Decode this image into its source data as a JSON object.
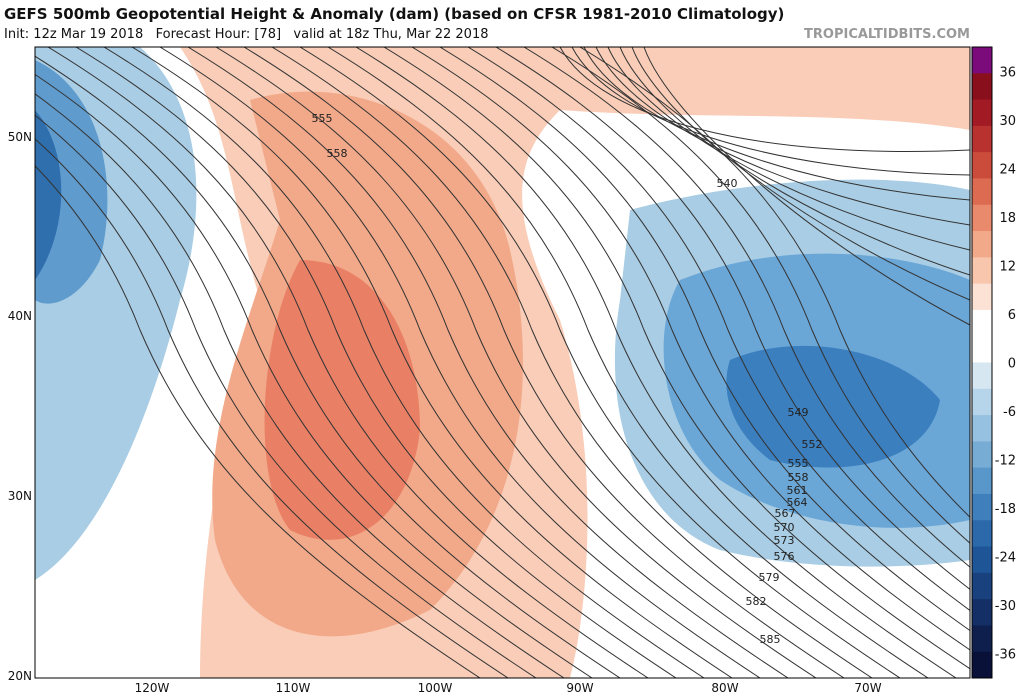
{
  "header": {
    "title": "GEFS 500mb Geopotential Height & Anomaly (dam) (based on CFSR 1981-2010 Climatology)",
    "subtitle": "Init: 12z Mar 19 2018   Forecast Hour: [78]   valid at 18z Thu, Mar 22 2018",
    "brand": "TROPICALTIDBITS.COM"
  },
  "map": {
    "lat_labels": [
      "50N",
      "40N",
      "30N",
      "20N"
    ],
    "lon_labels": [
      "120W",
      "110W",
      "100W",
      "90W",
      "80W",
      "70W"
    ],
    "contour_labels": [
      "555",
      "558",
      "540",
      "549",
      "552",
      "555",
      "558",
      "561",
      "564",
      "567",
      "570",
      "573",
      "576",
      "579",
      "582",
      "585"
    ]
  },
  "colorbar": {
    "labels": [
      "36",
      "30",
      "24",
      "18",
      "12",
      "6",
      "0",
      "-6",
      "-12",
      "-18",
      "-24",
      "-30",
      "-36"
    ]
  }
}
